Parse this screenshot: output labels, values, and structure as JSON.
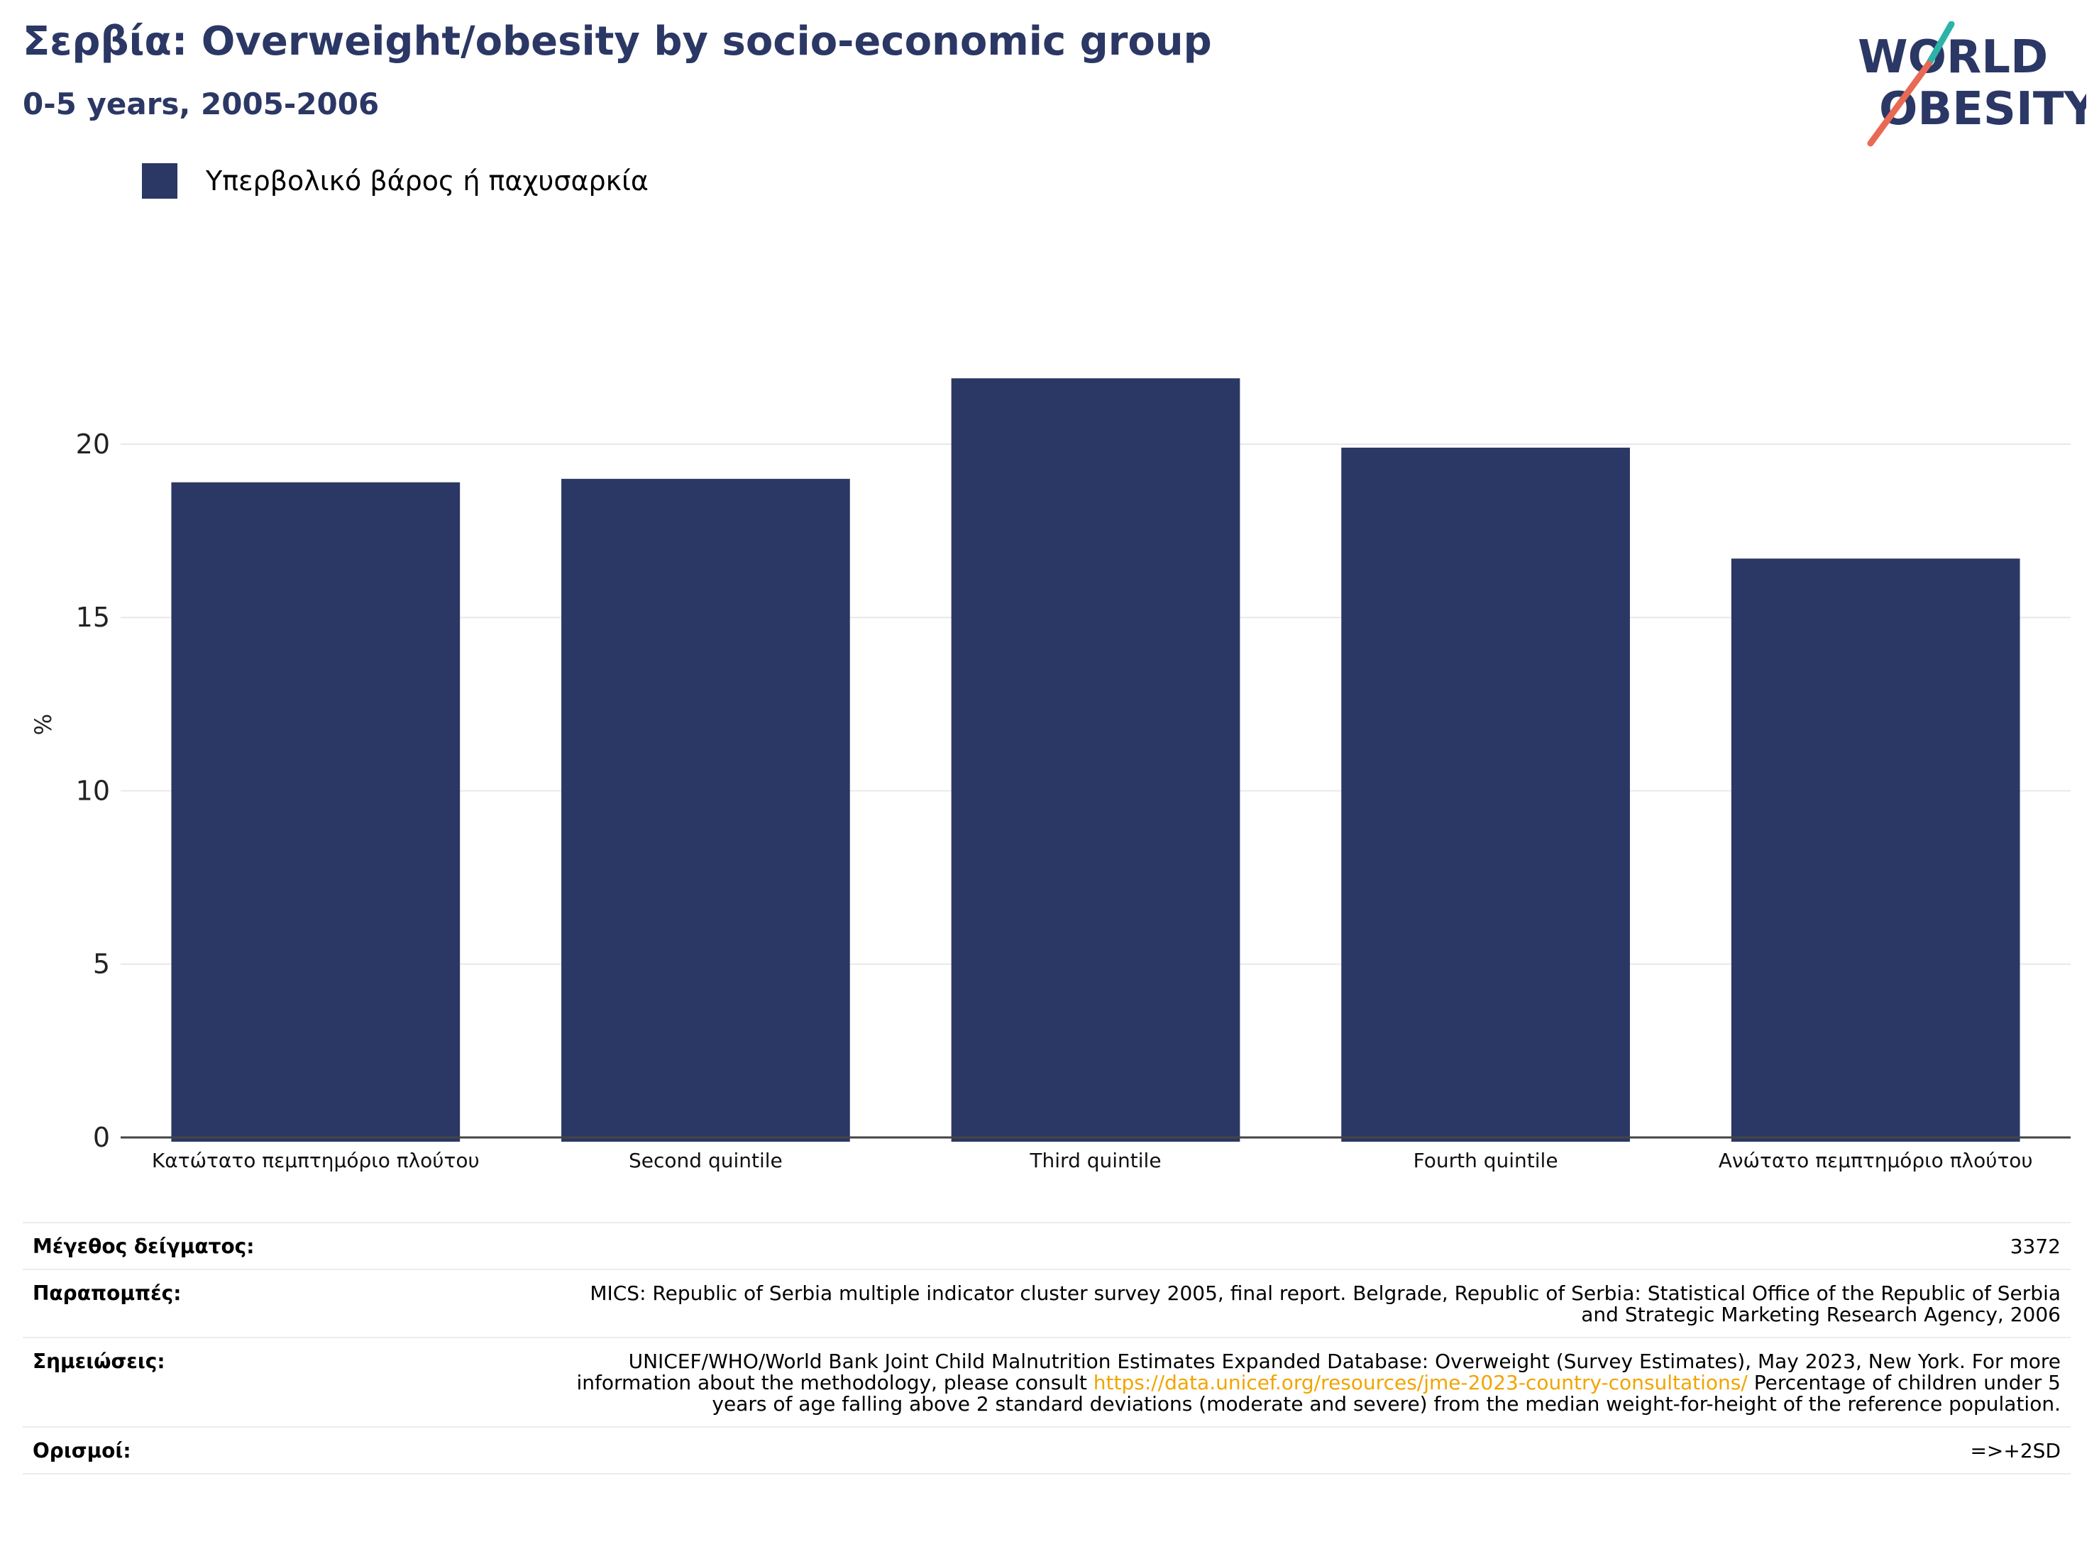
{
  "header": {
    "title": "Σερβία: Overweight/obesity by socio-economic group",
    "subtitle": "0-5 years, 2005-2006"
  },
  "logo": {
    "line1": "WORLD",
    "line2": "OBESITY"
  },
  "colors": {
    "bar": "#2b3764",
    "title": "#2b3764",
    "link": "#f0a500",
    "logo_teal": "#2bb3a8",
    "logo_coral": "#e86a55"
  },
  "chart_data": {
    "type": "bar",
    "title": "Σερβία: Overweight/obesity by socio-economic group",
    "subtitle": "0-5 years, 2005-2006",
    "categories": [
      "Κατώτατο πεμπτημόριο πλούτου",
      "Second quintile",
      "Third quintile",
      "Fourth quintile",
      "Ανώτατο πεμπτημόριο πλούτου"
    ],
    "series": [
      {
        "name": "Υπερβολικό βάρος ή παχυσαρκία",
        "values": [
          18.9,
          19.0,
          21.9,
          19.9,
          16.7
        ]
      }
    ],
    "xlabel": "",
    "ylabel": "%",
    "ylim": [
      0,
      23.5
    ],
    "yticks": [
      0,
      5,
      10,
      15,
      20
    ],
    "grid": true,
    "legend": "top-left"
  },
  "info": {
    "sample_label": "Μέγεθος δείγματος:",
    "sample_value": "3372",
    "refs_label": "Παραπομπές:",
    "refs_value": "MICS: Republic of Serbia multiple indicator cluster survey 2005, final report. Belgrade, Republic of Serbia: Statistical Office of the Republic of Serbia and Strategic Marketing Research Agency, 2006",
    "notes_label": "Σημειώσεις:",
    "notes_before": "UNICEF/WHO/World Bank Joint Child Malnutrition Estimates Expanded Database: Overweight (Survey Estimates), May 2023, New York. For more information about the methodology, please consult ",
    "notes_link": "https://data.unicef.org/resources/jme-2023-country-consultations/",
    "notes_after": " Percentage of children under 5 years of age falling above 2 standard deviations (moderate and severe) from the median weight-for-height of the reference population.",
    "defs_label": "Ορισμοί:",
    "defs_value": "=>+2SD"
  }
}
